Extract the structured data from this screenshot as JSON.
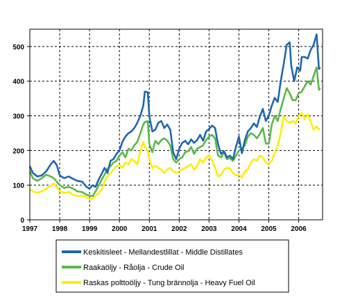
{
  "chart_data": {
    "type": "line",
    "title": "",
    "xlabel": "",
    "ylabel": "",
    "xlim": [
      1997,
      2006.8
    ],
    "ylim": [
      0,
      550
    ],
    "x_ticks": [
      "1997",
      "1998",
      "1999",
      "2000",
      "2001",
      "2002",
      "2003",
      "2004",
      "2005",
      "2006"
    ],
    "y_ticks": [
      "0",
      "100",
      "200",
      "300",
      "400",
      "500"
    ],
    "grid": true,
    "legend_position": "bottom",
    "series": [
      {
        "name": "Keskitisleet - Mellandestlillat - Middle Distillates",
        "color": "#1f66b0",
        "points": [
          [
            1997.0,
            155
          ],
          [
            1997.1,
            135
          ],
          [
            1997.25,
            125
          ],
          [
            1997.4,
            128
          ],
          [
            1997.55,
            140
          ],
          [
            1997.7,
            160
          ],
          [
            1997.8,
            170
          ],
          [
            1997.9,
            158
          ],
          [
            1998.0,
            128
          ],
          [
            1998.15,
            120
          ],
          [
            1998.3,
            125
          ],
          [
            1998.45,
            118
          ],
          [
            1998.6,
            112
          ],
          [
            1998.75,
            110
          ],
          [
            1998.9,
            95
          ],
          [
            1999.0,
            90
          ],
          [
            1999.1,
            100
          ],
          [
            1999.2,
            95
          ],
          [
            1999.3,
            115
          ],
          [
            1999.42,
            135
          ],
          [
            1999.5,
            150
          ],
          [
            1999.6,
            135
          ],
          [
            1999.7,
            170
          ],
          [
            1999.8,
            175
          ],
          [
            1999.9,
            190
          ],
          [
            2000.0,
            200
          ],
          [
            2000.1,
            225
          ],
          [
            2000.2,
            240
          ],
          [
            2000.3,
            250
          ],
          [
            2000.4,
            255
          ],
          [
            2000.5,
            265
          ],
          [
            2000.6,
            280
          ],
          [
            2000.7,
            300
          ],
          [
            2000.8,
            330
          ],
          [
            2000.85,
            370
          ],
          [
            2000.95,
            368
          ],
          [
            2001.0,
            300
          ],
          [
            2001.1,
            255
          ],
          [
            2001.2,
            260
          ],
          [
            2001.3,
            280
          ],
          [
            2001.4,
            285
          ],
          [
            2001.5,
            265
          ],
          [
            2001.6,
            275
          ],
          [
            2001.7,
            260
          ],
          [
            2001.8,
            195
          ],
          [
            2001.9,
            175
          ],
          [
            2002.0,
            205
          ],
          [
            2002.1,
            222
          ],
          [
            2002.2,
            228
          ],
          [
            2002.3,
            218
          ],
          [
            2002.4,
            232
          ],
          [
            2002.5,
            222
          ],
          [
            2002.6,
            230
          ],
          [
            2002.7,
            245
          ],
          [
            2002.8,
            228
          ],
          [
            2002.9,
            255
          ],
          [
            2003.0,
            262
          ],
          [
            2003.1,
            272
          ],
          [
            2003.2,
            265
          ],
          [
            2003.3,
            218
          ],
          [
            2003.4,
            190
          ],
          [
            2003.5,
            198
          ],
          [
            2003.6,
            180
          ],
          [
            2003.7,
            185
          ],
          [
            2003.8,
            175
          ],
          [
            2003.9,
            210
          ],
          [
            2004.0,
            240
          ],
          [
            2004.1,
            192
          ],
          [
            2004.2,
            230
          ],
          [
            2004.3,
            255
          ],
          [
            2004.4,
            265
          ],
          [
            2004.5,
            278
          ],
          [
            2004.6,
            268
          ],
          [
            2004.7,
            298
          ],
          [
            2004.8,
            320
          ],
          [
            2004.9,
            285
          ],
          [
            2005.0,
            300
          ],
          [
            2005.1,
            330
          ],
          [
            2005.2,
            352
          ],
          [
            2005.3,
            340
          ],
          [
            2005.4,
            400
          ],
          [
            2005.5,
            450
          ],
          [
            2005.6,
            505
          ],
          [
            2005.7,
            512
          ],
          [
            2005.75,
            445
          ],
          [
            2005.85,
            400
          ],
          [
            2005.95,
            440
          ],
          [
            2006.05,
            430
          ],
          [
            2006.1,
            470
          ],
          [
            2006.2,
            470
          ],
          [
            2006.3,
            465
          ],
          [
            2006.4,
            490
          ],
          [
            2006.5,
            505
          ],
          [
            2006.6,
            535
          ],
          [
            2006.68,
            435
          ],
          [
            2006.72,
            440
          ]
        ]
      },
      {
        "name": "Raakaöljy - Råolja - Crude Oil",
        "color": "#5ab848",
        "points": [
          [
            1997.0,
            140
          ],
          [
            1997.1,
            120
          ],
          [
            1997.25,
            112
          ],
          [
            1997.4,
            120
          ],
          [
            1997.55,
            130
          ],
          [
            1997.7,
            125
          ],
          [
            1997.8,
            120
          ],
          [
            1997.9,
            110
          ],
          [
            1998.0,
            100
          ],
          [
            1998.15,
            92
          ],
          [
            1998.3,
            95
          ],
          [
            1998.45,
            90
          ],
          [
            1998.6,
            82
          ],
          [
            1998.75,
            80
          ],
          [
            1998.9,
            72
          ],
          [
            1999.0,
            70
          ],
          [
            1999.1,
            68
          ],
          [
            1999.2,
            82
          ],
          [
            1999.3,
            98
          ],
          [
            1999.42,
            118
          ],
          [
            1999.5,
            130
          ],
          [
            1999.6,
            148
          ],
          [
            1999.7,
            155
          ],
          [
            1999.8,
            165
          ],
          [
            1999.9,
            170
          ],
          [
            2000.0,
            185
          ],
          [
            2000.1,
            195
          ],
          [
            2000.2,
            180
          ],
          [
            2000.3,
            205
          ],
          [
            2000.4,
            200
          ],
          [
            2000.5,
            215
          ],
          [
            2000.6,
            225
          ],
          [
            2000.7,
            250
          ],
          [
            2000.8,
            275
          ],
          [
            2000.85,
            282
          ],
          [
            2000.95,
            285
          ],
          [
            2001.0,
            220
          ],
          [
            2001.1,
            195
          ],
          [
            2001.2,
            228
          ],
          [
            2001.3,
            218
          ],
          [
            2001.4,
            230
          ],
          [
            2001.5,
            235
          ],
          [
            2001.6,
            228
          ],
          [
            2001.7,
            215
          ],
          [
            2001.8,
            175
          ],
          [
            2001.9,
            165
          ],
          [
            2002.0,
            175
          ],
          [
            2002.1,
            180
          ],
          [
            2002.2,
            195
          ],
          [
            2002.3,
            198
          ],
          [
            2002.4,
            210
          ],
          [
            2002.5,
            190
          ],
          [
            2002.6,
            205
          ],
          [
            2002.7,
            210
          ],
          [
            2002.8,
            215
          ],
          [
            2002.9,
            230
          ],
          [
            2003.0,
            240
          ],
          [
            2003.1,
            245
          ],
          [
            2003.2,
            235
          ],
          [
            2003.3,
            185
          ],
          [
            2003.4,
            180
          ],
          [
            2003.5,
            195
          ],
          [
            2003.6,
            175
          ],
          [
            2003.7,
            178
          ],
          [
            2003.8,
            170
          ],
          [
            2003.9,
            185
          ],
          [
            2004.0,
            200
          ],
          [
            2004.1,
            205
          ],
          [
            2004.2,
            215
          ],
          [
            2004.3,
            240
          ],
          [
            2004.4,
            250
          ],
          [
            2004.5,
            245
          ],
          [
            2004.6,
            235
          ],
          [
            2004.7,
            248
          ],
          [
            2004.8,
            265
          ],
          [
            2004.9,
            220
          ],
          [
            2005.0,
            220
          ],
          [
            2005.1,
            275
          ],
          [
            2005.2,
            300
          ],
          [
            2005.3,
            285
          ],
          [
            2005.4,
            320
          ],
          [
            2005.5,
            350
          ],
          [
            2005.6,
            380
          ],
          [
            2005.7,
            365
          ],
          [
            2005.8,
            345
          ],
          [
            2005.9,
            345
          ],
          [
            2006.0,
            365
          ],
          [
            2006.1,
            370
          ],
          [
            2006.2,
            385
          ],
          [
            2006.3,
            400
          ],
          [
            2006.4,
            390
          ],
          [
            2006.5,
            415
          ],
          [
            2006.6,
            440
          ],
          [
            2006.68,
            375
          ],
          [
            2006.72,
            380
          ]
        ]
      },
      {
        "name": "Raskas polttoöljy - Tung brännolja - Heavy Fuel Oil",
        "color": "#ffee00",
        "points": [
          [
            1997.0,
            88
          ],
          [
            1997.1,
            82
          ],
          [
            1997.25,
            78
          ],
          [
            1997.4,
            82
          ],
          [
            1997.55,
            90
          ],
          [
            1997.7,
            98
          ],
          [
            1997.8,
            105
          ],
          [
            1997.9,
            95
          ],
          [
            1998.0,
            82
          ],
          [
            1998.15,
            78
          ],
          [
            1998.3,
            80
          ],
          [
            1998.45,
            72
          ],
          [
            1998.6,
            68
          ],
          [
            1998.75,
            70
          ],
          [
            1998.9,
            65
          ],
          [
            1999.0,
            60
          ],
          [
            1999.1,
            60
          ],
          [
            1999.2,
            70
          ],
          [
            1999.3,
            75
          ],
          [
            1999.42,
            90
          ],
          [
            1999.5,
            110
          ],
          [
            1999.6,
            125
          ],
          [
            1999.7,
            135
          ],
          [
            1999.8,
            145
          ],
          [
            1999.9,
            155
          ],
          [
            2000.0,
            158
          ],
          [
            2000.1,
            150
          ],
          [
            2000.2,
            165
          ],
          [
            2000.3,
            160
          ],
          [
            2000.4,
            175
          ],
          [
            2000.5,
            170
          ],
          [
            2000.6,
            160
          ],
          [
            2000.7,
            200
          ],
          [
            2000.8,
            225
          ],
          [
            2000.85,
            210
          ],
          [
            2000.95,
            200
          ],
          [
            2001.0,
            175
          ],
          [
            2001.1,
            150
          ],
          [
            2001.2,
            155
          ],
          [
            2001.3,
            150
          ],
          [
            2001.4,
            145
          ],
          [
            2001.5,
            135
          ],
          [
            2001.6,
            145
          ],
          [
            2001.7,
            150
          ],
          [
            2001.8,
            140
          ],
          [
            2001.9,
            135
          ],
          [
            2002.0,
            140
          ],
          [
            2002.1,
            145
          ],
          [
            2002.2,
            150
          ],
          [
            2002.3,
            155
          ],
          [
            2002.4,
            160
          ],
          [
            2002.5,
            145
          ],
          [
            2002.6,
            155
          ],
          [
            2002.7,
            175
          ],
          [
            2002.8,
            165
          ],
          [
            2002.9,
            180
          ],
          [
            2003.0,
            185
          ],
          [
            2003.1,
            172
          ],
          [
            2003.2,
            150
          ],
          [
            2003.3,
            125
          ],
          [
            2003.4,
            130
          ],
          [
            2003.5,
            145
          ],
          [
            2003.6,
            150
          ],
          [
            2003.7,
            148
          ],
          [
            2003.8,
            135
          ],
          [
            2003.9,
            128
          ],
          [
            2004.0,
            130
          ],
          [
            2004.1,
            122
          ],
          [
            2004.2,
            140
          ],
          [
            2004.3,
            145
          ],
          [
            2004.4,
            165
          ],
          [
            2004.5,
            175
          ],
          [
            2004.6,
            170
          ],
          [
            2004.7,
            185
          ],
          [
            2004.8,
            180
          ],
          [
            2004.9,
            165
          ],
          [
            2005.0,
            160
          ],
          [
            2005.1,
            170
          ],
          [
            2005.2,
            195
          ],
          [
            2005.3,
            215
          ],
          [
            2005.4,
            250
          ],
          [
            2005.5,
            298
          ],
          [
            2005.6,
            285
          ],
          [
            2005.7,
            280
          ],
          [
            2005.8,
            285
          ],
          [
            2005.9,
            278
          ],
          [
            2006.0,
            300
          ],
          [
            2006.1,
            308
          ],
          [
            2006.2,
            290
          ],
          [
            2006.3,
            305
          ],
          [
            2006.4,
            285
          ],
          [
            2006.5,
            260
          ],
          [
            2006.6,
            270
          ],
          [
            2006.68,
            260
          ],
          [
            2006.72,
            262
          ]
        ]
      }
    ]
  }
}
